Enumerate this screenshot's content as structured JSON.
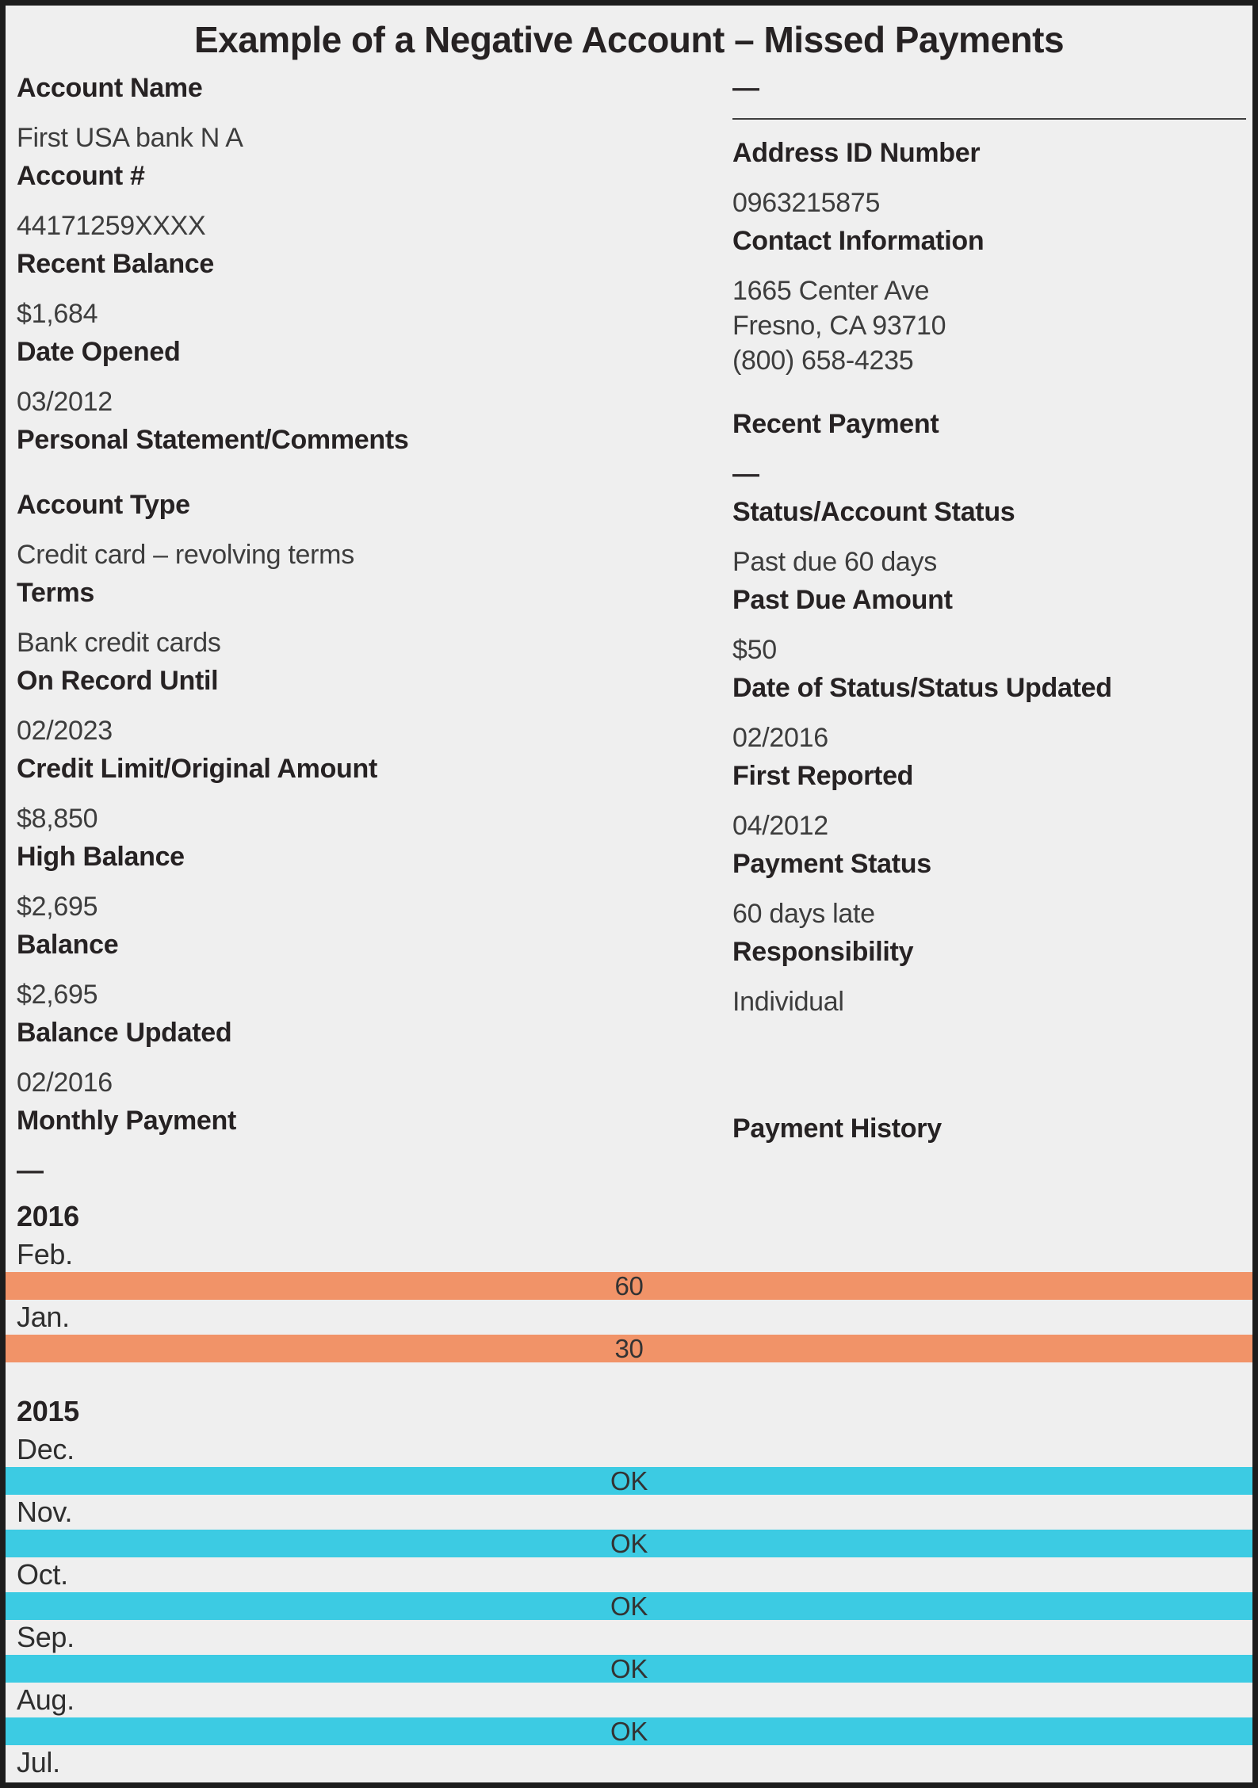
{
  "title": "Example of a Negative Account – Missed Payments",
  "colors": {
    "late-bar": "#f19368",
    "ok-bar": "#3ccbe3",
    "page-bg": "#efefef",
    "page-border": "#1d1d1d",
    "label-text": "#262223",
    "value-text": "#3d3d3d"
  },
  "left_fields": [
    {
      "label": "Account Name",
      "value": "First USA bank N A"
    },
    {
      "label": "Account #",
      "value": "44171259XXXX"
    },
    {
      "label": "Recent Balance",
      "value": "$1,684"
    },
    {
      "label": "Date Opened",
      "value": "03/2012"
    },
    {
      "label": "Personal Statement/Comments",
      "value": ""
    },
    {
      "label": "Account Type",
      "value": "Credit card – revolving terms"
    },
    {
      "label": "Terms",
      "value": "Bank credit cards"
    },
    {
      "label": "On Record Until",
      "value": "02/2023"
    },
    {
      "label": "Credit Limit/Original Amount",
      "value": "$8,850"
    },
    {
      "label": "High Balance",
      "value": "$2,695"
    },
    {
      "label": "Balance",
      "value": "$2,695"
    },
    {
      "label": "Balance Updated",
      "value": "02/2016"
    },
    {
      "label": "Monthly Payment",
      "value": "—"
    }
  ],
  "right_column": {
    "top_value": "—",
    "fields": [
      {
        "label": "Address ID Number",
        "value": "0963215875"
      },
      {
        "label": "Contact Information",
        "value_lines": [
          "1665 Center Ave",
          "Fresno, CA 93710",
          "(800) 658-4235"
        ]
      },
      {
        "label": "Recent Payment",
        "value": "—"
      },
      {
        "label": "Status/Account Status",
        "value": "Past due 60 days"
      },
      {
        "label": "Past Due Amount",
        "value": "$50"
      },
      {
        "label": "Date of Status/Status Updated",
        "value": "02/2016"
      },
      {
        "label": "First Reported",
        "value": "04/2012"
      },
      {
        "label": "Payment Status",
        "value": "60 days late"
      },
      {
        "label": "Responsibility",
        "value": "Individual"
      }
    ],
    "payment_history_header": "Payment History"
  },
  "payment_history": {
    "years": [
      {
        "year": "2016",
        "months": [
          {
            "label": "Feb.",
            "status": "60",
            "kind": "late"
          },
          {
            "label": "Jan.",
            "status": "30",
            "kind": "late"
          }
        ]
      },
      {
        "year": "2015",
        "months": [
          {
            "label": "Dec.",
            "status": "OK",
            "kind": "ok"
          },
          {
            "label": "Nov.",
            "status": "OK",
            "kind": "ok"
          },
          {
            "label": "Oct.",
            "status": "OK",
            "kind": "ok"
          },
          {
            "label": "Sep.",
            "status": "OK",
            "kind": "ok"
          },
          {
            "label": "Aug.",
            "status": "OK",
            "kind": "ok"
          },
          {
            "label": "Jul.",
            "status": "",
            "kind": "none"
          }
        ]
      }
    ]
  }
}
